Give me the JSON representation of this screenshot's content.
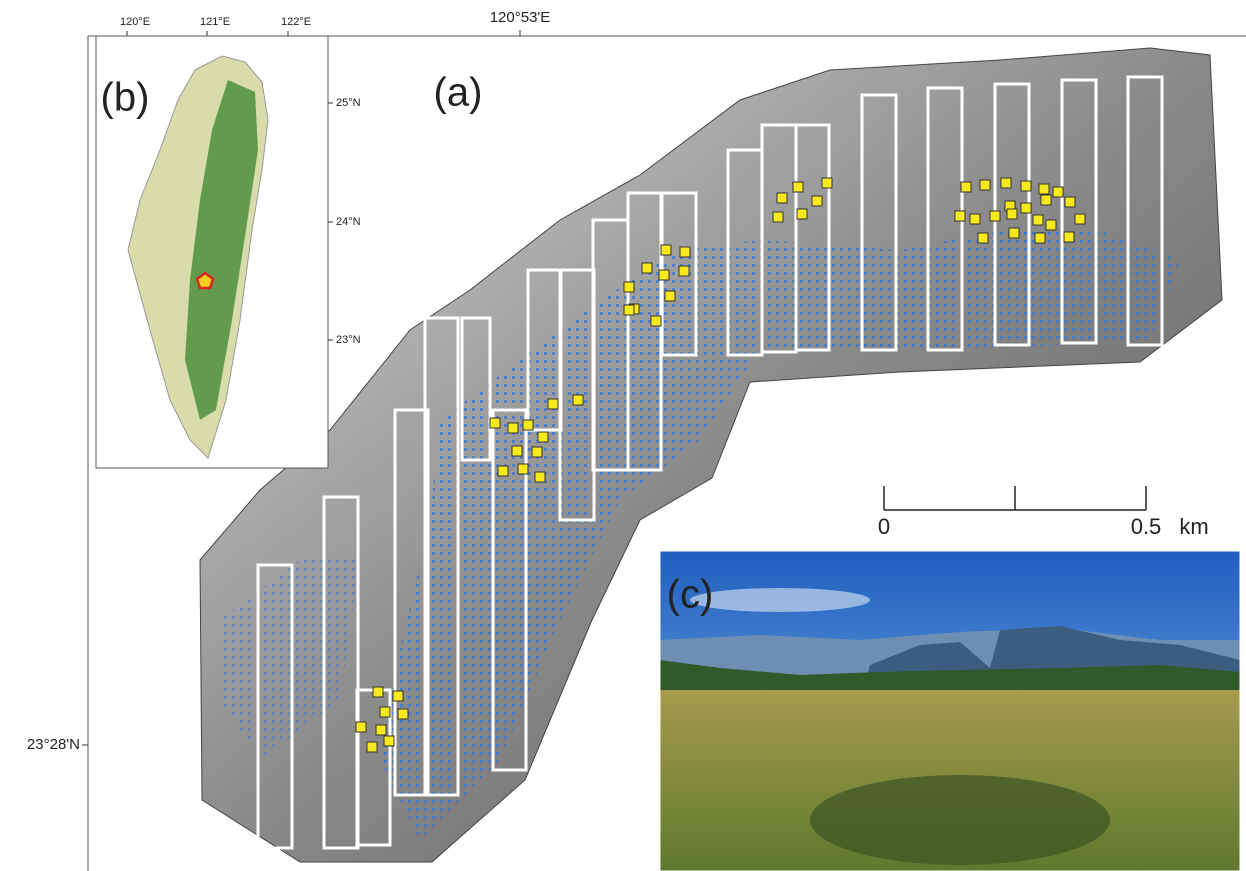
{
  "map": {
    "panel_a": {
      "label": "(a)",
      "top_coordinate": "120°53'E",
      "left_coordinate": "23°28'N",
      "scale_bar": {
        "start": "0",
        "end": "0.5",
        "unit": "km"
      }
    },
    "panel_b": {
      "label": "(b)",
      "longitude_ticks": [
        "120°E",
        "121°E",
        "122°E"
      ],
      "latitude_ticks": [
        "25°N",
        "24°N",
        "23°N"
      ]
    },
    "panel_c": {
      "label": "(c)"
    }
  }
}
